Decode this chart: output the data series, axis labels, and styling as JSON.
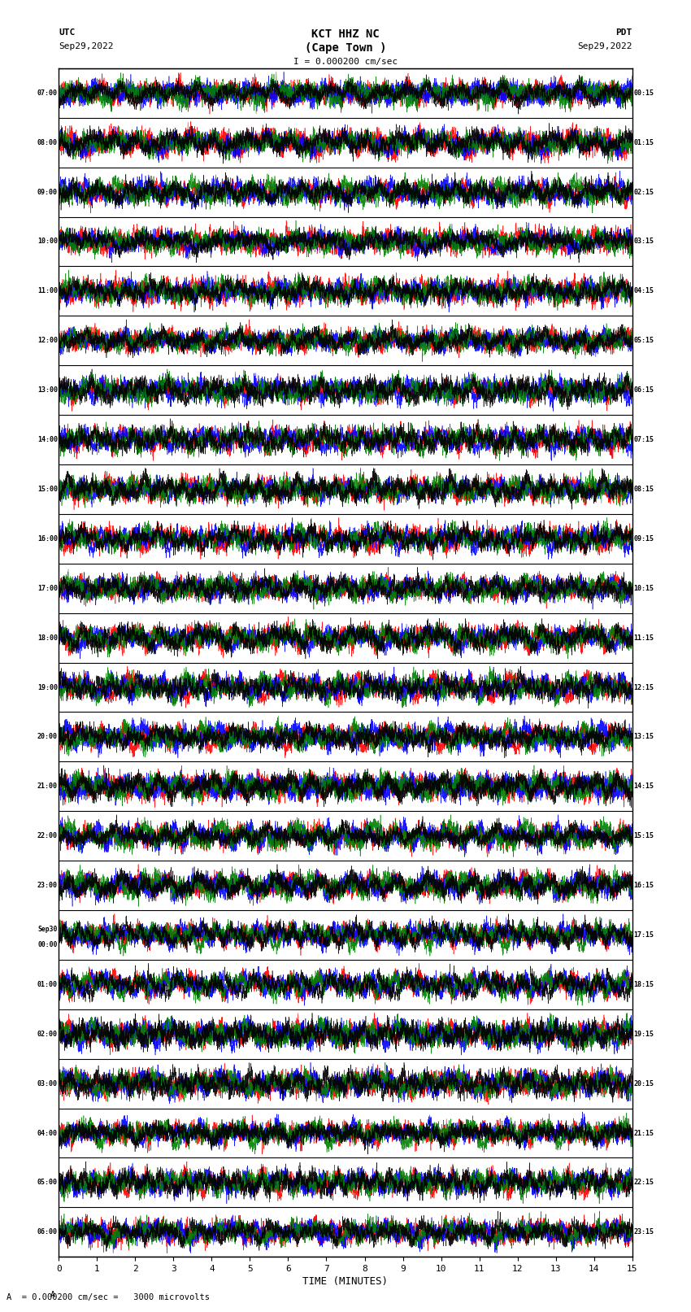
{
  "title_line1": "KCT HHZ NC",
  "title_line2": "(Cape Town )",
  "scale_label": "I = 0.000200 cm/sec",
  "utc_label": "UTC",
  "pdt_label": "PDT",
  "date_left": "Sep29,2022",
  "date_right": "Sep29,2022",
  "bottom_label": "A  = 0.000200 cm/sec =   3000 microvolts",
  "xlabel": "TIME (MINUTES)",
  "left_times": [
    "07:00",
    "08:00",
    "09:00",
    "10:00",
    "11:00",
    "12:00",
    "13:00",
    "14:00",
    "15:00",
    "16:00",
    "17:00",
    "18:00",
    "19:00",
    "20:00",
    "21:00",
    "22:00",
    "23:00",
    "Sep30\n00:00",
    "01:00",
    "02:00",
    "03:00",
    "04:00",
    "05:00",
    "06:00"
  ],
  "right_times": [
    "00:15",
    "01:15",
    "02:15",
    "03:15",
    "04:15",
    "05:15",
    "06:15",
    "07:15",
    "08:15",
    "09:15",
    "10:15",
    "11:15",
    "12:15",
    "13:15",
    "14:15",
    "15:15",
    "16:15",
    "17:15",
    "18:15",
    "19:15",
    "20:15",
    "21:15",
    "22:15",
    "23:15"
  ],
  "num_rows": 24,
  "minutes_per_row": 15,
  "bg_color": "white",
  "colors": [
    "red",
    "blue",
    "green",
    "black"
  ],
  "figwidth": 8.5,
  "figheight": 16.13,
  "xlim": [
    0,
    15
  ],
  "xticks": [
    0,
    1,
    2,
    3,
    4,
    5,
    6,
    7,
    8,
    9,
    10,
    11,
    12,
    13,
    14,
    15
  ],
  "samples": 6000,
  "amplitude_scale": 0.85
}
